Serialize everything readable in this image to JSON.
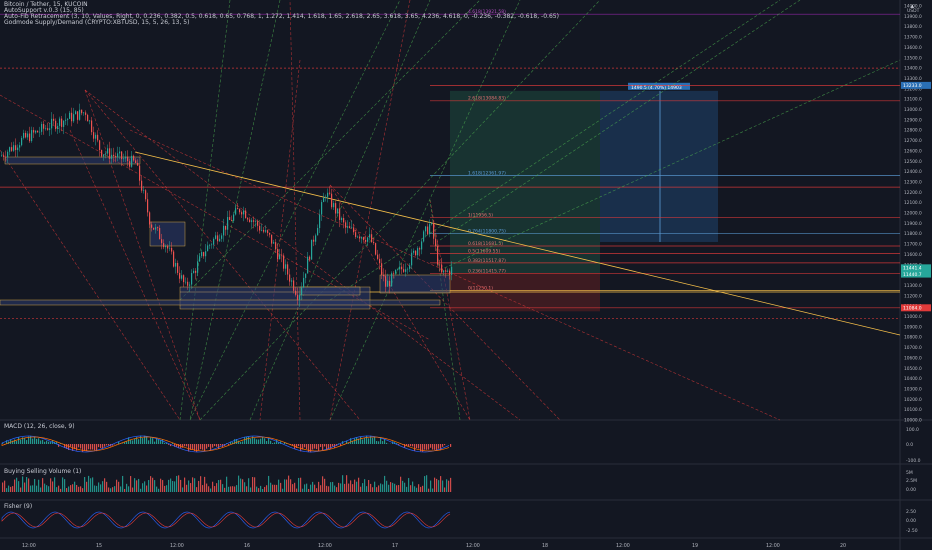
{
  "header": {
    "symbol": "Bitcoin / Tether, 15, KUCOIN",
    "indicator1": "AutoSupport v.0.3 (15, 85)",
    "indicator2": "Auto-Fib Retracement (3, 10, Values, Right, 0, 0.236, 0.382, 0.5, 0.618, 0.65, 0.768, 1, 1.272, 1.414, 1.618, 1.65, 2.618, 2.65, 3.618, 3.65, 4.236, 4.618, 0, -0.236, -0.382, -0.618, -0.65)",
    "indicator3": "Godmode Supply/Demand (CRYPTO:XBTUSD, 15, 5, 26, 13, 5)",
    "collapse_icon": "chevron-up-icon"
  },
  "price_axis": {
    "labels": [
      "14000.0",
      "13900.0",
      "13800.0",
      "13700.0",
      "13600.0",
      "13500.0",
      "13400.0",
      "13300.0",
      "13200.0",
      "13100.0",
      "13000.0",
      "12900.0",
      "12800.0",
      "12700.0",
      "12600.0",
      "12500.0",
      "12400.0",
      "12300.0",
      "12200.0",
      "12100.0",
      "12000.0",
      "11900.0",
      "11800.0",
      "11700.0",
      "11600.0",
      "11500.0",
      "11400.0",
      "11300.0",
      "11200.0",
      "11100.0",
      "11000.0",
      "10900.0",
      "10800.0",
      "10700.0",
      "10600.0",
      "10500.0",
      "10400.0",
      "10300.0",
      "10200.0",
      "10100.0",
      "10000.0"
    ],
    "tag_usdt": "USDT",
    "tag_last": "11441.4",
    "tag_last2": "11440.7",
    "tag_target": "13233.0",
    "tag_stop": "11084.0"
  },
  "fib_labels": [
    "2.618(13084.83)",
    "1.618(12361.97)",
    "1(11956.5)",
    "0.764(11800.75)",
    "0.618(11681.5)",
    "0.5(11609.55)",
    "0.382(11517.87)",
    "0.236(11415.77)",
    "0(11250.1)",
    "4.618(13921.58)"
  ],
  "position_label": "1490.5 (4.70%) 14903",
  "macd": {
    "label": "MACD (12, 26, close, 9)",
    "axis": [
      "100.0",
      "0.0",
      "-100.0"
    ]
  },
  "volume": {
    "label": "Buying Selling Volume (1)",
    "axis": [
      "5M",
      "2.5M",
      "0.00"
    ]
  },
  "fisher": {
    "label": "Fisher (9)",
    "axis": [
      "2.50",
      "0.00",
      "-2.50"
    ]
  },
  "time_axis": [
    "12:00",
    "15",
    "12:00",
    "16",
    "12:00",
    "17",
    "12:00",
    "18",
    "12:00",
    "19",
    "12:00",
    "20"
  ],
  "colors": {
    "bg": "#131722",
    "up": "#26a69a",
    "down": "#ef5350",
    "trend": "#f7c04a",
    "fib": "#e03a3a"
  }
}
